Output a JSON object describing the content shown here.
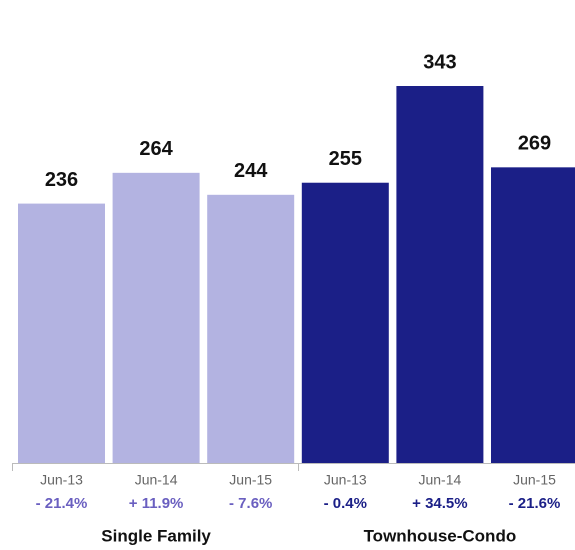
{
  "chart_data": {
    "type": "bar",
    "groups": [
      {
        "name": "Single Family",
        "color": "#b3b3e1",
        "label_color": "#6a5fc0",
        "categories": [
          "Jun-13",
          "Jun-14",
          "Jun-15"
        ],
        "values": [
          236,
          264,
          244
        ],
        "changes": [
          -21.4,
          11.9,
          -7.6
        ],
        "change_labels": [
          "- 21.4%",
          "+ 11.9%",
          "- 7.6%"
        ]
      },
      {
        "name": "Townhouse-Condo",
        "color": "#1b1f87",
        "label_color": "#1b1f87",
        "categories": [
          "Jun-13",
          "Jun-14",
          "Jun-15"
        ],
        "values": [
          255,
          343,
          269
        ],
        "changes": [
          -0.4,
          34.5,
          -21.6
        ],
        "change_labels": [
          "- 0.4%",
          "+ 34.5%",
          "- 21.6%"
        ]
      }
    ]
  }
}
